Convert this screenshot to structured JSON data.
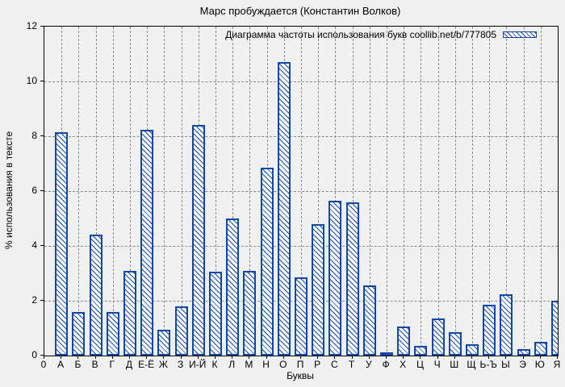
{
  "title": "Марс пробуждается (Константин Волков)",
  "legend": {
    "label": "Диаграмма частоты использования букв coollib.net/b/777805",
    "swatch": "hatched-box"
  },
  "axes": {
    "x_title": "Буквы",
    "y_title": "% использования в тексте",
    "x_origin_label": "0",
    "y_ticks": [
      "0",
      "2",
      "4",
      "6",
      "8",
      "10",
      "12"
    ]
  },
  "colors": {
    "bar_outline": "#1048a8",
    "bar_fill": "#ffffff",
    "grid": "#8c8c8c",
    "axis": "#000000",
    "background": "#f0f0f0",
    "text": "#000000"
  },
  "chart_data": {
    "type": "bar",
    "title": "Марс пробуждается (Константин Волков)",
    "xlabel": "Буквы",
    "ylabel": "% использования в тексте",
    "legend": "Диаграмма частоты использования букв coollib.net/b/777805",
    "legend_position": "top-right-inside",
    "ylim": [
      0,
      12
    ],
    "xlim": [
      0,
      30
    ],
    "y_tick_step": 2,
    "grid": true,
    "bar_style": "blue outline, white fill, backslash diagonal hatch",
    "categories": [
      "А",
      "Б",
      "В",
      "Г",
      "Д",
      "Е-Ё",
      "Ж",
      "З",
      "И-Й",
      "К",
      "Л",
      "М",
      "Н",
      "О",
      "П",
      "Р",
      "С",
      "Т",
      "У",
      "Ф",
      "Х",
      "Ц",
      "Ч",
      "Ш",
      "Щ",
      "Ь-Ъ",
      "Ы",
      "Э",
      "Ю",
      "Я"
    ],
    "values": [
      8.15,
      1.6,
      4.4,
      1.6,
      3.1,
      8.25,
      0.95,
      1.8,
      8.4,
      3.05,
      5.0,
      3.1,
      6.85,
      10.7,
      2.85,
      4.8,
      5.65,
      5.6,
      2.55,
      0.1,
      1.05,
      0.35,
      1.35,
      0.85,
      0.4,
      1.85,
      2.25,
      0.25,
      0.5,
      2.0
    ]
  }
}
